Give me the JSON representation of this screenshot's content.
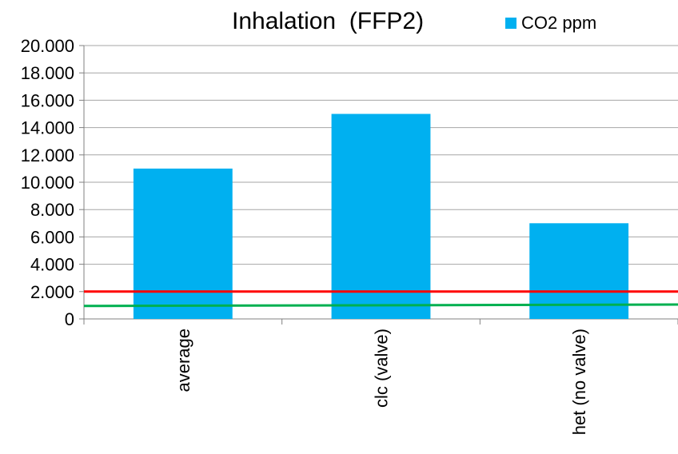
{
  "chart_data": {
    "type": "bar",
    "title": "Inhalation  (FFP2)",
    "categories": [
      "average",
      "clc (valve)",
      "het (no valve)"
    ],
    "series": [
      {
        "name": "CO2 ppm",
        "values": [
          11000,
          15000,
          7000
        ],
        "color": "#00b0f0"
      }
    ],
    "reference_lines": [
      {
        "value": 2000,
        "color": "#ff0000"
      },
      {
        "value_start": 950,
        "value_end": 1050,
        "color": "#00b050"
      }
    ],
    "ylim": [
      0,
      20000
    ],
    "yticks": [
      0,
      2000,
      4000,
      6000,
      8000,
      10000,
      12000,
      14000,
      16000,
      18000,
      20000
    ],
    "ytick_labels": [
      "0",
      "2.000",
      "4.000",
      "6.000",
      "8.000",
      "10.000",
      "12.000",
      "14.000",
      "16.000",
      "18.000",
      "20.000"
    ],
    "grid": true,
    "legend_position": "top-right",
    "xlabel": "",
    "ylabel": ""
  }
}
